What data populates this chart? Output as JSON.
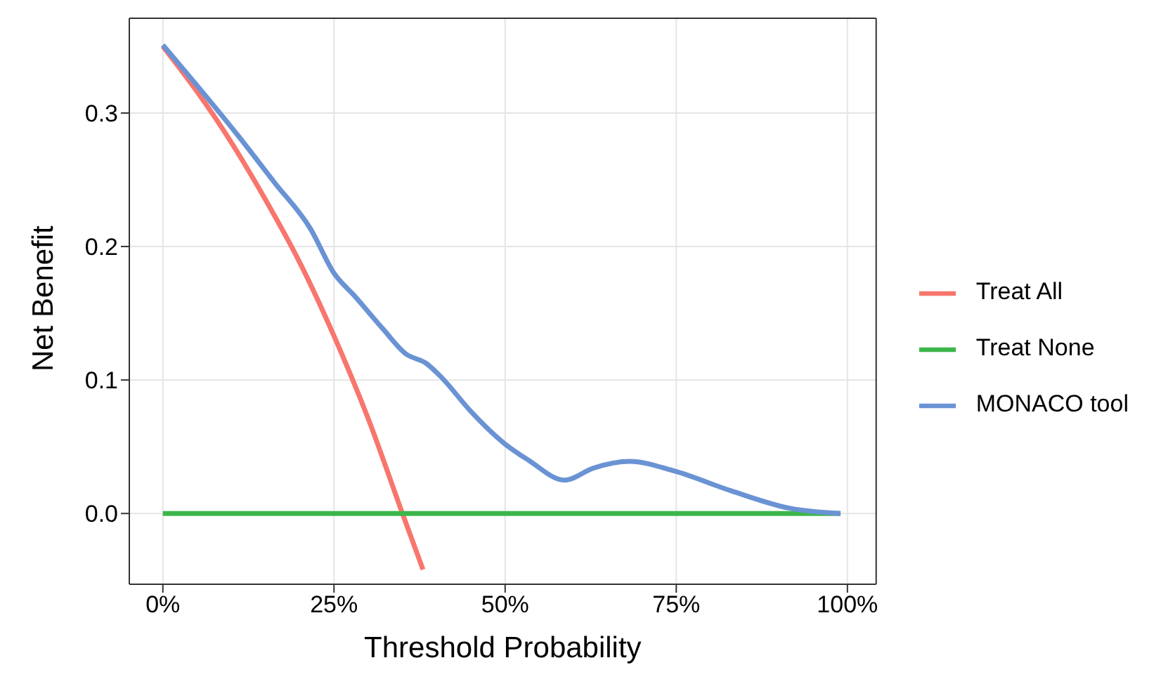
{
  "chart_data": {
    "type": "line",
    "xlabel": "Threshold Probability",
    "ylabel": "Net Benefit",
    "xlim": [
      -0.049,
      1.042
    ],
    "xticks": [
      {
        "value": 0,
        "label": "0%"
      },
      {
        "value": 0.25,
        "label": "25%"
      },
      {
        "value": 0.5,
        "label": "50%"
      },
      {
        "value": 0.75,
        "label": "75%"
      },
      {
        "value": 1,
        "label": "100%"
      }
    ],
    "ylim": [
      -0.053,
      0.371
    ],
    "yticks": [
      {
        "value": 0,
        "label": "0.0"
      },
      0.1,
      0.2,
      0.3
    ],
    "grid": true,
    "legend": "right",
    "marker": "none",
    "line_style": "solid",
    "series": [
      {
        "name": "Treat All",
        "color": "#f8766d",
        "x": [
          0,
          0.05,
          0.1,
          0.15,
          0.2,
          0.25,
          0.3,
          0.35,
          0.38
        ],
        "values": [
          0.35,
          0.316,
          0.278,
          0.235,
          0.188,
          0.133,
          0.071,
          0,
          -0.042
        ]
      },
      {
        "name": "Treat None",
        "color": "#3cb64a",
        "x": [
          0,
          0.99
        ],
        "values": [
          0,
          0
        ]
      },
      {
        "name": "MONACO tool",
        "color": "#6a93d4",
        "x": [
          0,
          0.11,
          0.163,
          0.216,
          0.25,
          0.28,
          0.322,
          0.354,
          0.386,
          0.407,
          0.449,
          0.5,
          0.534,
          0.587,
          0.629,
          0.682,
          0.746,
          0.83,
          0.915,
          0.99
        ],
        "values": [
          0.351,
          0.283,
          0.248,
          0.213,
          0.18,
          0.163,
          0.138,
          0.12,
          0.112,
          0.102,
          0.077,
          0.052,
          0.04,
          0.025,
          0.034,
          0.039,
          0.032,
          0.017,
          0.004,
          0
        ]
      }
    ]
  }
}
